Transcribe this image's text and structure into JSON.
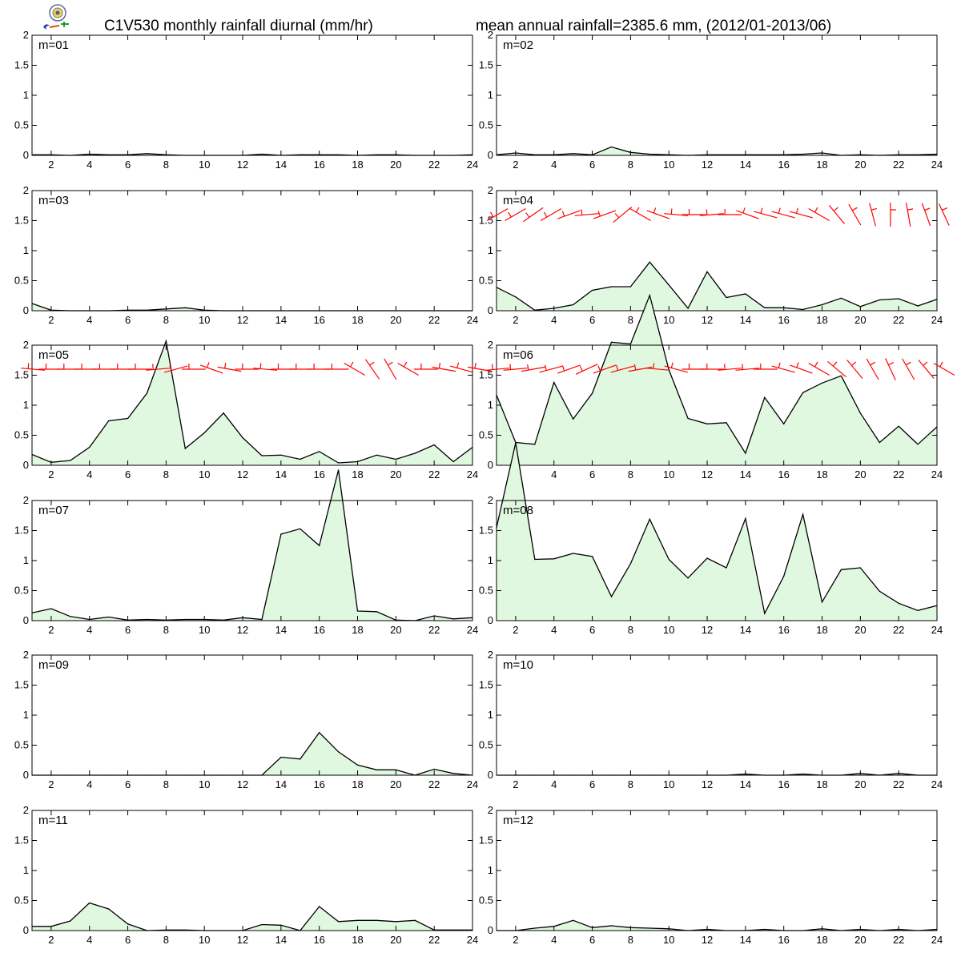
{
  "header": {
    "title_left": "C1V530 monthly rainfall diurnal (mm/hr)",
    "title_right": "mean annual rainfall=2385.6 mm, (2012/01-2013/06)",
    "logo": "stamp-logo-icon"
  },
  "colors": {
    "fill": "#e0f8e0",
    "line": "#000000",
    "wind": "#ff0000",
    "frame": "#000000"
  },
  "chart_data": {
    "type": "area",
    "x": [
      1,
      2,
      3,
      4,
      5,
      6,
      7,
      8,
      9,
      10,
      11,
      12,
      13,
      14,
      15,
      16,
      17,
      18,
      19,
      20,
      21,
      22,
      23,
      24
    ],
    "x_ticks": [
      2,
      4,
      6,
      8,
      10,
      12,
      14,
      16,
      18,
      20,
      22,
      24
    ],
    "y_ticks": [
      0,
      0.5,
      1,
      1.5,
      2
    ],
    "ylim": [
      0,
      2
    ],
    "xlim": [
      1,
      24
    ],
    "panels": [
      {
        "label": "m=01",
        "values": [
          0.01,
          0.01,
          0.0,
          0.02,
          0.01,
          0.01,
          0.03,
          0.01,
          0.0,
          0.0,
          0.0,
          0.0,
          0.02,
          0.0,
          0.01,
          0.01,
          0.01,
          0.0,
          0.01,
          0.01,
          0.0,
          0.0,
          0.0,
          0.01
        ]
      },
      {
        "label": "m=02",
        "values": [
          0.01,
          0.04,
          0.01,
          0.01,
          0.03,
          0.01,
          0.14,
          0.05,
          0.02,
          0.01,
          0.0,
          0.01,
          0.01,
          0.01,
          0.01,
          0.01,
          0.02,
          0.04,
          0.0,
          0.01,
          0.0,
          0.01,
          0.01,
          0.02
        ]
      },
      {
        "label": "m=03",
        "values": [
          0.12,
          0.01,
          0.0,
          0.0,
          0.0,
          0.01,
          0.01,
          0.03,
          0.05,
          0.01,
          0.0,
          0.0,
          0.0,
          0.0,
          0.0,
          0.0,
          0.0,
          0.0,
          0.0,
          0.0,
          0.0,
          0.0,
          0.0,
          0.0
        ]
      },
      {
        "label": "m=04",
        "values": [
          0.39,
          0.23,
          0.01,
          0.04,
          0.1,
          0.34,
          0.4,
          0.4,
          0.81,
          0.43,
          0.04,
          0.65,
          0.22,
          0.28,
          0.05,
          0.05,
          0.02,
          0.1,
          0.21,
          0.07,
          0.18,
          0.2,
          0.08,
          0.19
        ],
        "wind": true
      },
      {
        "label": "m=05",
        "values": [
          0.18,
          0.05,
          0.08,
          0.3,
          0.74,
          0.78,
          1.2,
          2.07,
          0.28,
          0.54,
          0.87,
          0.46,
          0.16,
          0.17,
          0.1,
          0.23,
          0.04,
          0.06,
          0.17,
          0.1,
          0.2,
          0.34,
          0.06,
          0.3
        ],
        "wind": true
      },
      {
        "label": "m=06",
        "values": [
          1.17,
          0.38,
          0.35,
          1.38,
          0.77,
          1.2,
          2.05,
          2.02,
          2.83,
          1.59,
          0.78,
          0.69,
          0.71,
          0.2,
          1.13,
          0.69,
          1.21,
          1.37,
          1.49,
          0.87,
          0.38,
          0.65,
          0.35,
          0.64
        ],
        "wind": true
      },
      {
        "label": "m=07",
        "values": [
          0.13,
          0.2,
          0.07,
          0.02,
          0.06,
          0.01,
          0.02,
          0.01,
          0.02,
          0.02,
          0.01,
          0.05,
          0.02,
          1.44,
          1.53,
          1.25,
          2.51,
          0.16,
          0.15,
          0.01,
          0.0,
          0.08,
          0.03,
          0.05
        ]
      },
      {
        "label": "m=08",
        "values": [
          1.55,
          2.96,
          1.02,
          1.03,
          1.12,
          1.07,
          0.4,
          0.95,
          1.69,
          1.02,
          0.71,
          1.04,
          0.88,
          1.7,
          0.12,
          0.74,
          1.77,
          0.31,
          0.85,
          0.88,
          0.49,
          0.29,
          0.17,
          0.25
        ]
      },
      {
        "label": "m=09",
        "values": [
          0.0,
          0.0,
          0.0,
          0.0,
          0.0,
          0.0,
          0.0,
          0.0,
          0.0,
          0.0,
          0.0,
          0.0,
          0.0,
          0.3,
          0.27,
          0.71,
          0.39,
          0.17,
          0.09,
          0.09,
          0.0,
          0.1,
          0.03,
          0.0
        ]
      },
      {
        "label": "m=10",
        "values": [
          0.0,
          0.0,
          0.0,
          0.0,
          0.0,
          0.0,
          0.0,
          0.0,
          0.0,
          0.0,
          0.0,
          0.0,
          0.0,
          0.02,
          0.0,
          0.0,
          0.02,
          0.0,
          0.0,
          0.03,
          0.0,
          0.03,
          0.0,
          0.0
        ]
      },
      {
        "label": "m=11",
        "values": [
          0.07,
          0.07,
          0.16,
          0.46,
          0.36,
          0.11,
          0.0,
          0.01,
          0.01,
          0.0,
          0.0,
          0.0,
          0.1,
          0.09,
          0.0,
          0.4,
          0.15,
          0.17,
          0.17,
          0.15,
          0.17,
          0.01,
          0.01,
          0.01
        ]
      },
      {
        "label": "m=12",
        "values": [
          0.0,
          0.0,
          0.04,
          0.07,
          0.17,
          0.05,
          0.08,
          0.05,
          0.04,
          0.03,
          0.0,
          0.02,
          0.0,
          0.0,
          0.02,
          0.0,
          0.0,
          0.03,
          0.0,
          0.02,
          0.0,
          0.02,
          0.0,
          0.02
        ]
      }
    ],
    "wind_direction_deg": {
      "m=04": [
        240,
        240,
        235,
        240,
        250,
        265,
        250,
        230,
        300,
        290,
        275,
        270,
        265,
        270,
        290,
        285,
        285,
        285,
        300,
        320,
        330,
        345,
        0,
        350,
        340,
        335
      ],
      "m=05": [
        275,
        270,
        270,
        270,
        270,
        270,
        270,
        265,
        255,
        270,
        290,
        280,
        270,
        275,
        270,
        270,
        270,
        270,
        300,
        325,
        330,
        300,
        270,
        280,
        285,
        280
      ],
      "m=06": [
        265,
        265,
        260,
        255,
        250,
        245,
        250,
        255,
        260,
        275,
        285,
        270,
        270,
        265,
        265,
        270,
        285,
        290,
        300,
        310,
        320,
        330,
        335,
        330,
        320,
        300
      ]
    }
  }
}
